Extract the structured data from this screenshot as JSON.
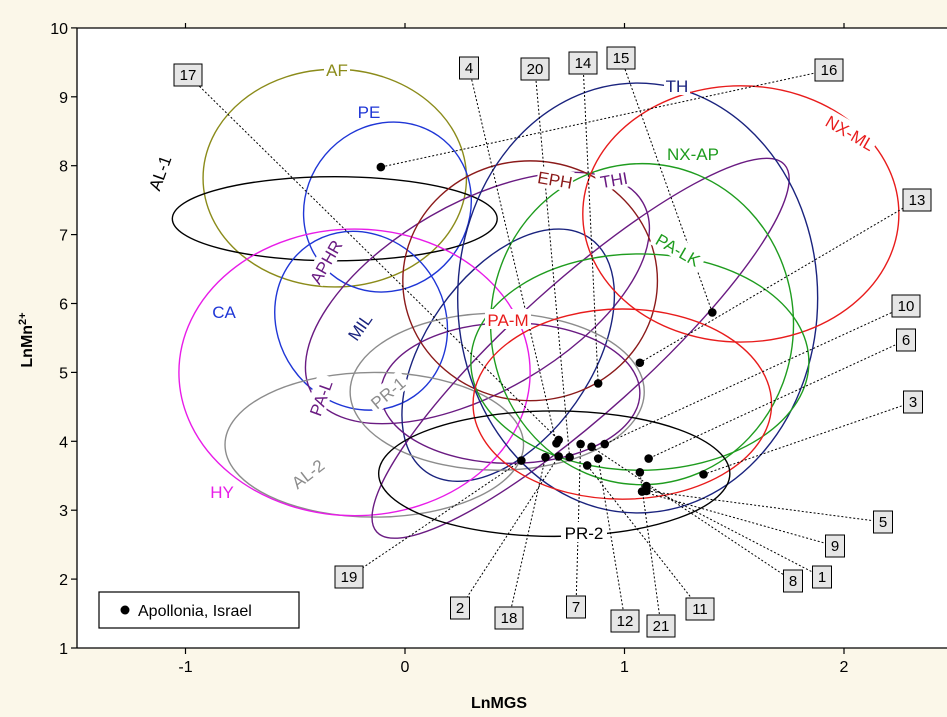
{
  "chart_data": {
    "type": "scatter",
    "title": "",
    "xlabel": "LnMGS",
    "ylabel_main": "LnMn",
    "ylabel_sup": "2+",
    "xlim": [
      -1.6,
      2.5
    ],
    "ylim": [
      1,
      10
    ],
    "x_ticks": [
      -1,
      0,
      1,
      2
    ],
    "y_ticks": [
      1,
      2,
      3,
      4,
      5,
      6,
      7,
      8,
      9,
      10
    ],
    "grid": false,
    "legend_placement": "bottom-left",
    "legend_label": "Apollonia, Israel",
    "series": [
      {
        "name": "Apollonia, Israel",
        "points": [
          {
            "x": 1.1,
            "y": 3.35
          },
          {
            "x": 0.7,
            "y": 3.78
          },
          {
            "x": 1.36,
            "y": 3.52
          },
          {
            "x": 0.69,
            "y": 3.97
          },
          {
            "x": 1.1,
            "y": 3.28
          },
          {
            "x": 1.11,
            "y": 3.75
          },
          {
            "x": 0.8,
            "y": 3.96
          },
          {
            "x": 0.85,
            "y": 3.92
          },
          {
            "x": 1.08,
            "y": 3.27
          },
          {
            "x": 0.91,
            "y": 3.96
          },
          {
            "x": 0.83,
            "y": 3.65
          },
          {
            "x": 0.88,
            "y": 3.75
          },
          {
            "x": 1.07,
            "y": 5.14
          },
          {
            "x": 0.88,
            "y": 4.84
          },
          {
            "x": 1.4,
            "y": 5.87
          },
          {
            "x": -0.11,
            "y": 7.98
          },
          {
            "x": 0.7,
            "y": 4.02
          },
          {
            "x": 0.64,
            "y": 3.77
          },
          {
            "x": 0.53,
            "y": 3.72
          },
          {
            "x": 0.75,
            "y": 3.77
          },
          {
            "x": 1.07,
            "y": 3.55
          }
        ]
      }
    ],
    "groups": [
      {
        "name": "AF",
        "color": "#8b8b1a"
      },
      {
        "name": "PE",
        "color": "#1f36d6"
      },
      {
        "name": "AL-1",
        "color": "#000000"
      },
      {
        "name": "CA",
        "color": "#1f36d6"
      },
      {
        "name": "APHR",
        "color": "#6a1b82"
      },
      {
        "name": "MIL",
        "color": "#1a237e"
      },
      {
        "name": "PA-L",
        "color": "#6a1b82"
      },
      {
        "name": "PR-1",
        "color": "#8c8c8c"
      },
      {
        "name": "AL-2",
        "color": "#8c8c8c"
      },
      {
        "name": "HY",
        "color": "#e81ce8"
      },
      {
        "name": "EPH",
        "color": "#8b1a1a"
      },
      {
        "name": "THI",
        "color": "#6a1b82"
      },
      {
        "name": "TH",
        "color": "#1a237e"
      },
      {
        "name": "NX-AP",
        "color": "#1f9c1f"
      },
      {
        "name": "NX-ML",
        "color": "#e81c1c"
      },
      {
        "name": "PA-LK",
        "color": "#1f9c1f"
      },
      {
        "name": "PA-M",
        "color": "#e81c1c"
      },
      {
        "name": "PR-2",
        "color": "#000000"
      }
    ],
    "sample_labels": [
      "1",
      "2",
      "3",
      "4",
      "5",
      "6",
      "7",
      "8",
      "9",
      "10",
      "11",
      "12",
      "13",
      "14",
      "15",
      "16",
      "17",
      "18",
      "19",
      "20",
      "21"
    ]
  }
}
